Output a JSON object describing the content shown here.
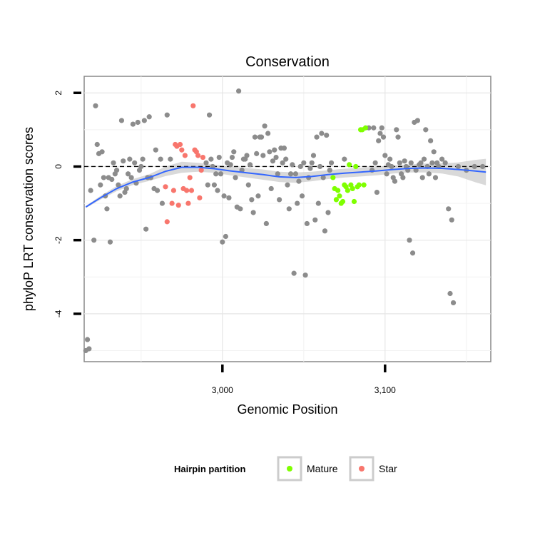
{
  "chart_data": {
    "type": "scatter",
    "title": "Conservation",
    "xlabel": "Genomic Position",
    "ylabel": "phyloP LRT conservation scores",
    "xlim": [
      2915,
      3165
    ],
    "ylim": [
      -5.3,
      2.45
    ],
    "x_ticks": [
      {
        "value": 3000,
        "label": "3,000"
      },
      {
        "value": 3100,
        "label": "3,100"
      }
    ],
    "y_ticks": [
      {
        "value": 2,
        "label": "2"
      },
      {
        "value": 0,
        "label": "0"
      },
      {
        "value": -2,
        "label": "-2"
      },
      {
        "value": -4,
        "label": "-4"
      }
    ],
    "x_minor_grid": [
      2950,
      3050,
      3150
    ],
    "y_minor_grid": [
      1,
      -1,
      -3,
      -5
    ],
    "reference_line": {
      "y": 0,
      "style": "dashed"
    },
    "grid": true,
    "legend": {
      "title": "Hairpin partition",
      "placement": "bottom",
      "entries": [
        {
          "label": "Mature",
          "color": "#7fff00"
        },
        {
          "label": "Star",
          "color": "#f8766d"
        }
      ]
    },
    "colors": {
      "other": "#8c8c8c",
      "Mature": "#7fff00",
      "Star": "#f8766d",
      "smooth": "#3366ff",
      "band": "#cccccc"
    },
    "series": [
      {
        "name": "",
        "group": "other",
        "points": [
          [
            2916,
            -5.0
          ],
          [
            2917,
            -4.7
          ],
          [
            2918,
            -4.95
          ],
          [
            2919,
            -0.65
          ],
          [
            2921,
            -2.0
          ],
          [
            2922,
            1.65
          ],
          [
            2923,
            0.6
          ],
          [
            2924,
            0.35
          ],
          [
            2925,
            -0.5
          ],
          [
            2926,
            0.4
          ],
          [
            2927,
            -0.3
          ],
          [
            2928,
            -0.8
          ],
          [
            2929,
            -1.15
          ],
          [
            2930,
            -0.3
          ],
          [
            2931,
            -2.05
          ],
          [
            2932,
            -0.35
          ],
          [
            2933,
            0.1
          ],
          [
            2934,
            -0.2
          ],
          [
            2935,
            -0.1
          ],
          [
            2936,
            -0.5
          ],
          [
            2937,
            -0.8
          ],
          [
            2938,
            1.25
          ],
          [
            2939,
            0.15
          ],
          [
            2940,
            -0.7
          ],
          [
            2941,
            -0.6
          ],
          [
            2942,
            -0.2
          ],
          [
            2943,
            0.2
          ],
          [
            2944,
            -0.3
          ],
          [
            2945,
            1.15
          ],
          [
            2946,
            0.1
          ],
          [
            2947,
            -0.45
          ],
          [
            2948,
            1.2
          ],
          [
            2949,
            -0.1
          ],
          [
            2950,
            0.0
          ],
          [
            2951,
            0.2
          ],
          [
            2952,
            1.25
          ],
          [
            2953,
            -1.7
          ],
          [
            2954,
            -0.3
          ],
          [
            2955,
            1.35
          ],
          [
            2956,
            -0.3
          ],
          [
            2958,
            -0.6
          ],
          [
            2959,
            0.45
          ],
          [
            2960,
            -0.65
          ],
          [
            2962,
            0.2
          ],
          [
            2963,
            -1.0
          ],
          [
            2966,
            1.4
          ],
          [
            2968,
            0.2
          ],
          [
            2990,
            0.1
          ],
          [
            2991,
            -0.5
          ],
          [
            2992,
            1.4
          ],
          [
            2993,
            0.2
          ],
          [
            2994,
            0.0
          ],
          [
            2995,
            -0.5
          ],
          [
            2996,
            -0.2
          ],
          [
            2997,
            -0.65
          ],
          [
            2998,
            0.25
          ],
          [
            2999,
            -0.2
          ],
          [
            3000,
            -2.05
          ],
          [
            3001,
            -0.8
          ],
          [
            3002,
            -1.9
          ],
          [
            3003,
            0.1
          ],
          [
            3004,
            -0.85
          ],
          [
            3005,
            0.05
          ],
          [
            3006,
            0.25
          ],
          [
            3007,
            0.4
          ],
          [
            3008,
            -0.3
          ],
          [
            3009,
            -1.1
          ],
          [
            3010,
            2.05
          ],
          [
            3011,
            -1.15
          ],
          [
            3012,
            -0.1
          ],
          [
            3013,
            0.2
          ],
          [
            3014,
            0.2
          ],
          [
            3015,
            0.3
          ],
          [
            3016,
            -0.5
          ],
          [
            3017,
            0.05
          ],
          [
            3018,
            -0.9
          ],
          [
            3019,
            -1.25
          ],
          [
            3020,
            0.8
          ],
          [
            3021,
            0.35
          ],
          [
            3022,
            -0.8
          ],
          [
            3023,
            0.8
          ],
          [
            3024,
            0.8
          ],
          [
            3025,
            0.3
          ],
          [
            3026,
            1.1
          ],
          [
            3027,
            -1.55
          ],
          [
            3028,
            0.9
          ],
          [
            3029,
            0.4
          ],
          [
            3030,
            -0.6
          ],
          [
            3031,
            0.15
          ],
          [
            3032,
            0.45
          ],
          [
            3033,
            0.25
          ],
          [
            3034,
            -0.2
          ],
          [
            3035,
            -0.9
          ],
          [
            3036,
            0.5
          ],
          [
            3037,
            0.1
          ],
          [
            3038,
            0.5
          ],
          [
            3039,
            0.2
          ],
          [
            3040,
            -0.5
          ],
          [
            3041,
            -1.15
          ],
          [
            3042,
            -0.2
          ],
          [
            3043,
            0.05
          ],
          [
            3044,
            -2.9
          ],
          [
            3045,
            -0.2
          ],
          [
            3046,
            -1.0
          ],
          [
            3047,
            -0.4
          ],
          [
            3048,
            0.0
          ],
          [
            3049,
            -0.8
          ],
          [
            3050,
            0.1
          ],
          [
            3051,
            -2.95
          ],
          [
            3052,
            -1.55
          ],
          [
            3053,
            -0.3
          ],
          [
            3054,
            -0.05
          ],
          [
            3055,
            0.1
          ],
          [
            3056,
            0.3
          ],
          [
            3057,
            -1.45
          ],
          [
            3058,
            0.8
          ],
          [
            3059,
            -1.0
          ],
          [
            3060,
            0.0
          ],
          [
            3061,
            0.9
          ],
          [
            3062,
            -0.3
          ],
          [
            3063,
            -1.75
          ],
          [
            3064,
            0.85
          ],
          [
            3065,
            -1.25
          ],
          [
            3066,
            -0.1
          ],
          [
            3067,
            0.1
          ],
          [
            3075,
            0.2
          ],
          [
            3090,
            1.05
          ],
          [
            3092,
            -0.1
          ],
          [
            3093,
            1.05
          ],
          [
            3094,
            0.1
          ],
          [
            3095,
            -0.7
          ],
          [
            3096,
            0.7
          ],
          [
            3097,
            0.9
          ],
          [
            3098,
            1.05
          ],
          [
            3099,
            0.8
          ],
          [
            3100,
            0.3
          ],
          [
            3101,
            -0.2
          ],
          [
            3102,
            0.05
          ],
          [
            3103,
            0.2
          ],
          [
            3104,
            0.0
          ],
          [
            3105,
            -0.3
          ],
          [
            3106,
            -0.4
          ],
          [
            3107,
            1.0
          ],
          [
            3108,
            0.8
          ],
          [
            3109,
            0.1
          ],
          [
            3110,
            -0.2
          ],
          [
            3111,
            -0.3
          ],
          [
            3112,
            0.15
          ],
          [
            3113,
            0.0
          ],
          [
            3114,
            -0.1
          ],
          [
            3115,
            -2.0
          ],
          [
            3116,
            0.1
          ],
          [
            3117,
            -2.35
          ],
          [
            3118,
            1.2
          ],
          [
            3119,
            -0.1
          ],
          [
            3120,
            1.25
          ],
          [
            3121,
            0.05
          ],
          [
            3122,
            0.1
          ],
          [
            3123,
            -0.3
          ],
          [
            3124,
            0.2
          ],
          [
            3125,
            1.0
          ],
          [
            3126,
            0.0
          ],
          [
            3127,
            -0.2
          ],
          [
            3128,
            0.7
          ],
          [
            3129,
            0.1
          ],
          [
            3130,
            0.4
          ],
          [
            3131,
            -0.3
          ],
          [
            3132,
            0.1
          ],
          [
            3133,
            0.0
          ],
          [
            3135,
            0.2
          ],
          [
            3137,
            0.1
          ],
          [
            3139,
            -1.15
          ],
          [
            3140,
            -3.45
          ],
          [
            3141,
            -1.45
          ],
          [
            3142,
            -3.7
          ],
          [
            3145,
            0.0
          ],
          [
            3150,
            -0.1
          ],
          [
            3155,
            0.0
          ],
          [
            3160,
            0.0
          ]
        ]
      },
      {
        "name": "Mature",
        "group": "Mature",
        "points": [
          [
            3068,
            -0.3
          ],
          [
            3069,
            -0.6
          ],
          [
            3070,
            -0.9
          ],
          [
            3071,
            -0.65
          ],
          [
            3072,
            -0.8
          ],
          [
            3073,
            -1.0
          ],
          [
            3074,
            -0.95
          ],
          [
            3075,
            -0.5
          ],
          [
            3076,
            -0.55
          ],
          [
            3077,
            -0.65
          ],
          [
            3078,
            0.05
          ],
          [
            3079,
            -0.5
          ],
          [
            3080,
            -0.6
          ],
          [
            3081,
            -0.95
          ],
          [
            3082,
            0.0
          ],
          [
            3083,
            -0.55
          ],
          [
            3084,
            -0.5
          ],
          [
            3085,
            1.0
          ],
          [
            3086,
            1.0
          ],
          [
            3087,
            -0.5
          ],
          [
            3088,
            1.05
          ]
        ]
      },
      {
        "name": "Star",
        "group": "Star",
        "points": [
          [
            2965,
            -0.55
          ],
          [
            2966,
            -1.5
          ],
          [
            2969,
            -1.0
          ],
          [
            2970,
            -0.65
          ],
          [
            2971,
            0.6
          ],
          [
            2972,
            0.55
          ],
          [
            2973,
            -1.05
          ],
          [
            2974,
            0.6
          ],
          [
            2975,
            0.45
          ],
          [
            2976,
            -0.6
          ],
          [
            2977,
            0.3
          ],
          [
            2978,
            -0.65
          ],
          [
            2979,
            -1.0
          ],
          [
            2980,
            -0.3
          ],
          [
            2981,
            -0.65
          ],
          [
            2982,
            1.65
          ],
          [
            2983,
            0.45
          ],
          [
            2984,
            0.4
          ],
          [
            2985,
            0.3
          ],
          [
            2986,
            -0.85
          ],
          [
            2987,
            -0.1
          ],
          [
            2988,
            0.25
          ]
        ]
      }
    ],
    "smooth_line": {
      "x": [
        2916,
        2925,
        2935,
        2945,
        2955,
        2965,
        2975,
        2985,
        2995,
        3005,
        3015,
        3025,
        3035,
        3045,
        3055,
        3065,
        3075,
        3085,
        3095,
        3105,
        3115,
        3125,
        3135,
        3145,
        3155,
        3162
      ],
      "y": [
        -1.1,
        -0.85,
        -0.6,
        -0.42,
        -0.3,
        -0.13,
        -0.02,
        -0.02,
        -0.06,
        -0.12,
        -0.17,
        -0.22,
        -0.28,
        -0.3,
        -0.27,
        -0.22,
        -0.18,
        -0.15,
        -0.12,
        -0.08,
        -0.05,
        -0.04,
        -0.05,
        -0.08,
        -0.12,
        -0.15
      ],
      "lower": [
        -1.13,
        -0.9,
        -0.67,
        -0.5,
        -0.39,
        -0.26,
        -0.17,
        -0.14,
        -0.17,
        -0.24,
        -0.3,
        -0.36,
        -0.42,
        -0.44,
        -0.4,
        -0.34,
        -0.3,
        -0.27,
        -0.24,
        -0.19,
        -0.16,
        -0.16,
        -0.19,
        -0.27,
        -0.42,
        -0.51
      ],
      "upper": [
        -1.07,
        -0.8,
        -0.53,
        -0.34,
        -0.21,
        0.0,
        0.13,
        0.1,
        0.05,
        0.0,
        -0.04,
        -0.08,
        -0.14,
        -0.16,
        -0.14,
        -0.1,
        -0.06,
        -0.03,
        0.0,
        0.03,
        0.06,
        0.08,
        0.09,
        0.11,
        0.18,
        0.21
      ]
    }
  }
}
